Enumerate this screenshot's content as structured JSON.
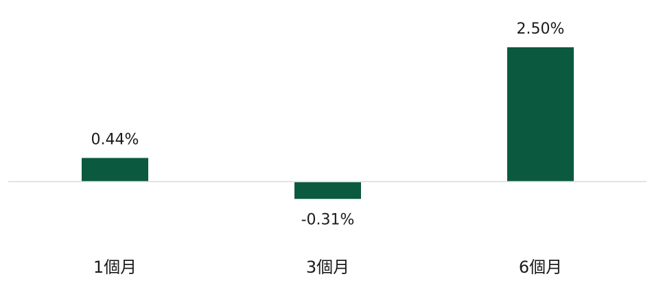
{
  "chart_data": {
    "type": "bar",
    "categories": [
      "1個月",
      "3個月",
      "6個月"
    ],
    "values": [
      0.44,
      -0.31,
      2.5
    ],
    "value_labels": [
      "0.44%",
      "-0.31%",
      "2.50%"
    ],
    "unit": "%",
    "ylim": [
      -0.31,
      2.5
    ],
    "grid": false,
    "legend": "none",
    "bar_color": "#0b5a40",
    "axis_color": "#d9d9d9"
  }
}
